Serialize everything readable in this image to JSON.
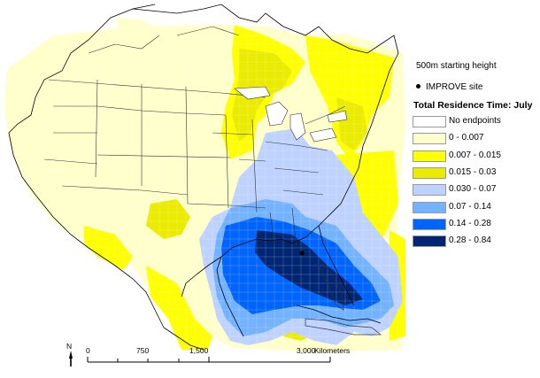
{
  "legend": {
    "height_note": "500m starting height",
    "site_label": "IMPROVE site",
    "title": "Total Residence Time: July",
    "classes": [
      {
        "label": "No endpoints",
        "color": "#ffffff"
      },
      {
        "label": "0 - 0.007",
        "color": "#ffffcc"
      },
      {
        "label": "0.007 - 0.015",
        "color": "#ffff00"
      },
      {
        "label": "0.015 - 0.03",
        "color": "#ebeb00"
      },
      {
        "label": "0.030 - 0.07",
        "color": "#bed2ff"
      },
      {
        "label": "0.07 - 0.14",
        "color": "#73b2ff"
      },
      {
        "label": "0.14 - 0.28",
        "color": "#0064ff"
      },
      {
        "label": "0.28 - 0.84",
        "color": "#002673"
      }
    ]
  },
  "scalebar": {
    "ticks": [
      "0",
      "750",
      "1,500",
      "3,000"
    ],
    "units": "Kilometers"
  },
  "north_arrow": {
    "label": "N"
  },
  "map": {
    "site_marker_name": "IMPROVE site",
    "border_color": "#ffffff",
    "land_line_color": "#000000"
  }
}
